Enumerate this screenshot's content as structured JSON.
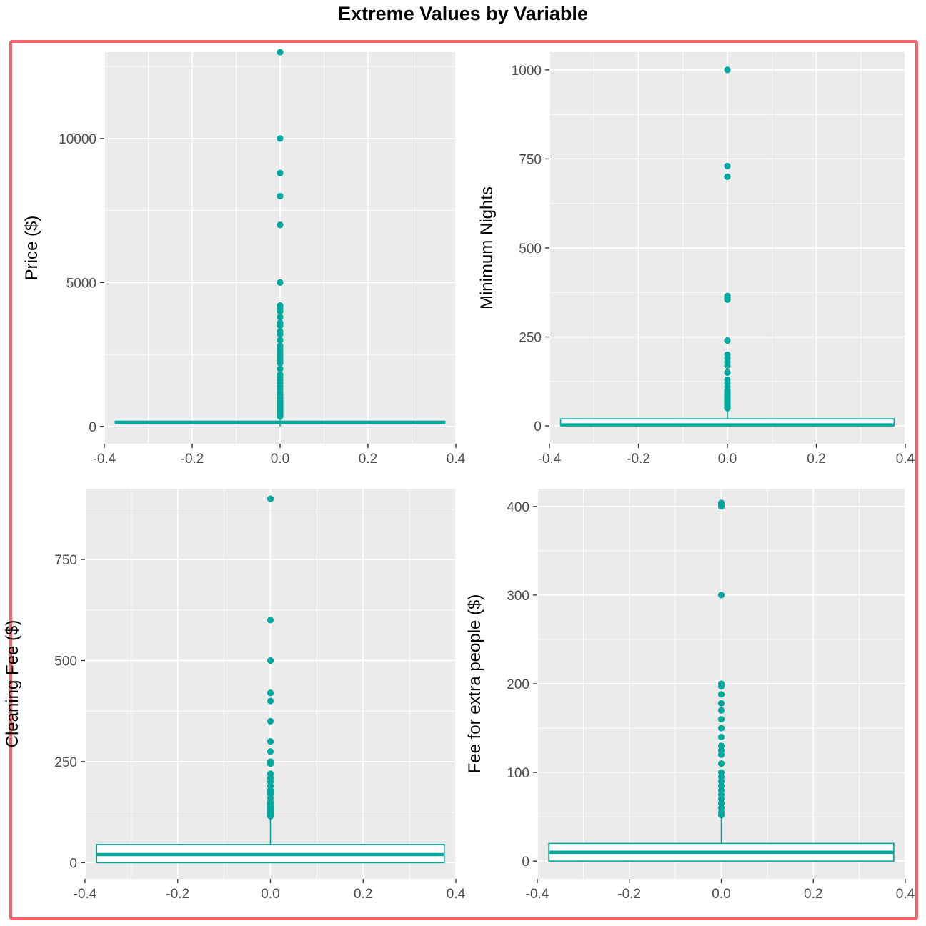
{
  "title": "Extreme Values by Variable",
  "colors": {
    "accent": "#00a99d",
    "panel": "#ebebeb",
    "grid": "#ffffff",
    "frame": "#f8636a"
  },
  "chart_data": [
    {
      "type": "boxplot",
      "ylabel": "Price ($)",
      "xlim": [
        -0.4,
        0.4
      ],
      "ylim": [
        -600,
        13000
      ],
      "x_ticks": [
        -0.4,
        -0.2,
        0.0,
        0.2,
        0.4
      ],
      "x_tick_labels": [
        "-0.4",
        "-0.2",
        "0.0",
        "0.2",
        "0.4"
      ],
      "y_ticks": [
        0,
        5000,
        10000
      ],
      "y_tick_labels": [
        "0",
        "5000",
        "10000"
      ],
      "box": {
        "q1": 100,
        "median": 140,
        "q3": 180,
        "whisker_low": 0,
        "whisker_high": 300,
        "width": 0.75
      },
      "outliers": [
        12999,
        10000,
        8800,
        8000,
        7000,
        5000,
        4200,
        4100,
        4000,
        3800,
        3600,
        3500,
        3300,
        3200,
        3000,
        2800,
        2700,
        2600,
        2500,
        2400,
        2300,
        2200,
        2000,
        1800,
        1700,
        1600,
        1500,
        1400,
        1300,
        1200,
        1100,
        1000,
        950,
        900,
        850,
        800,
        750,
        700,
        650,
        600,
        550,
        500,
        450,
        400,
        350
      ]
    },
    {
      "type": "boxplot",
      "ylabel": "Minimum Nights",
      "xlim": [
        -0.4,
        0.4
      ],
      "ylim": [
        -50,
        1050
      ],
      "x_ticks": [
        -0.4,
        -0.2,
        0.0,
        0.2,
        0.4
      ],
      "x_tick_labels": [
        "-0.4",
        "-0.2",
        "0.0",
        "0.2",
        "0.4"
      ],
      "y_ticks": [
        0,
        250,
        500,
        750,
        1000
      ],
      "y_tick_labels": [
        "0",
        "250",
        "500",
        "750",
        "1000"
      ],
      "box": {
        "q1": 1,
        "median": 3,
        "q3": 20,
        "whisker_low": 1,
        "whisker_high": 45,
        "width": 0.75
      },
      "outliers": [
        1000,
        730,
        700,
        365,
        360,
        355,
        240,
        200,
        190,
        180,
        170,
        150,
        130,
        120,
        110,
        100,
        95,
        90,
        85,
        80,
        75,
        70,
        65,
        60,
        55,
        50
      ]
    },
    {
      "type": "boxplot",
      "ylabel": "Cleaning Fee ($)",
      "xlim": [
        -0.4,
        0.4
      ],
      "ylim": [
        -40,
        925
      ],
      "x_ticks": [
        -0.4,
        -0.2,
        0.0,
        0.2,
        0.4
      ],
      "x_tick_labels": [
        "-0.4",
        "-0.2",
        "0.0",
        "0.2",
        "0.4"
      ],
      "y_ticks": [
        0,
        250,
        500,
        750
      ],
      "y_tick_labels": [
        "0",
        "250",
        "500",
        "750"
      ],
      "box": {
        "q1": 0,
        "median": 20,
        "q3": 45,
        "whisker_low": 0,
        "whisker_high": 110,
        "width": 0.75
      },
      "outliers": [
        900,
        600,
        500,
        420,
        400,
        350,
        300,
        275,
        250,
        245,
        220,
        210,
        200,
        190,
        180,
        175,
        170,
        160,
        150,
        145,
        140,
        135,
        130,
        125,
        120,
        115
      ]
    },
    {
      "type": "boxplot",
      "ylabel": "Fee for extra people ($)",
      "xlim": [
        -0.4,
        0.4
      ],
      "ylim": [
        -20,
        420
      ],
      "x_ticks": [
        -0.4,
        -0.2,
        0.0,
        0.2,
        0.4
      ],
      "x_tick_labels": [
        "-0.4",
        "-0.2",
        "0.0",
        "0.2",
        "0.4"
      ],
      "y_ticks": [
        0,
        100,
        200,
        300,
        400
      ],
      "y_tick_labels": [
        "0",
        "100",
        "200",
        "300",
        "400"
      ],
      "box": {
        "q1": 0,
        "median": 10,
        "q3": 20,
        "whisker_low": 0,
        "whisker_high": 50,
        "width": 0.75
      },
      "outliers": [
        404,
        402,
        400,
        300,
        200,
        197,
        188,
        178,
        170,
        160,
        150,
        140,
        130,
        125,
        120,
        110,
        100,
        95,
        90,
        85,
        80,
        75,
        70,
        65,
        60,
        55,
        52
      ]
    }
  ]
}
